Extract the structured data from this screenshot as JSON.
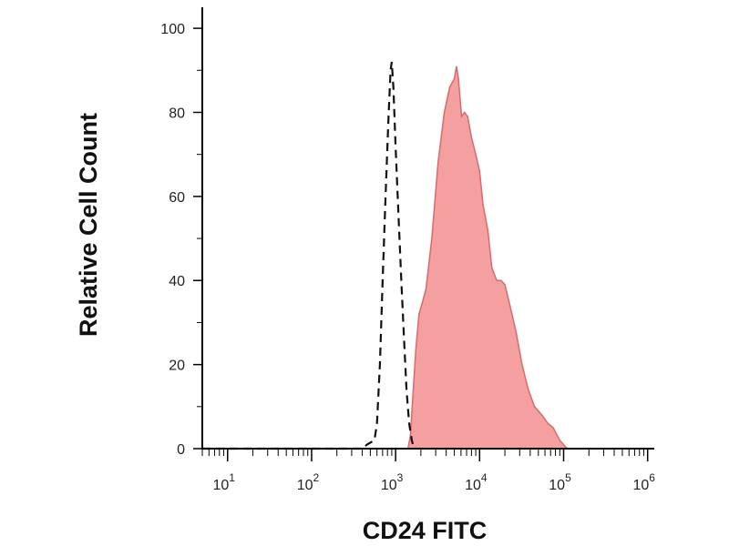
{
  "chart_data": {
    "type": "area",
    "title": "",
    "xlabel": "CD24 FITC",
    "ylabel": "Relative Cell Count",
    "x_scale": "log",
    "xlim": [
      5,
      1200000
    ],
    "ylim": [
      0,
      105
    ],
    "grid": false,
    "x_ticks": [
      {
        "base": "10",
        "exp": "1",
        "value": 10
      },
      {
        "base": "10",
        "exp": "2",
        "value": 100
      },
      {
        "base": "10",
        "exp": "3",
        "value": 1000
      },
      {
        "base": "10",
        "exp": "4",
        "value": 10000
      },
      {
        "base": "10",
        "exp": "5",
        "value": 100000
      },
      {
        "base": "10",
        "exp": "6",
        "value": 1000000
      }
    ],
    "y_ticks": [
      {
        "label": "0",
        "value": 0
      },
      {
        "label": "20",
        "value": 20
      },
      {
        "label": "40",
        "value": 40
      },
      {
        "label": "60",
        "value": 60
      },
      {
        "label": "80",
        "value": 80
      },
      {
        "label": "100",
        "value": 100
      }
    ],
    "series": [
      {
        "style": "dashed-outline",
        "color": "#111111",
        "points": [
          [
            5,
            0
          ],
          [
            400,
            0
          ],
          [
            460,
            1
          ],
          [
            560,
            2
          ],
          [
            600,
            6
          ],
          [
            650,
            20
          ],
          [
            700,
            40
          ],
          [
            760,
            60
          ],
          [
            820,
            78
          ],
          [
            870,
            90
          ],
          [
            900,
            92
          ],
          [
            940,
            86
          ],
          [
            1000,
            72
          ],
          [
            1080,
            56
          ],
          [
            1170,
            40
          ],
          [
            1260,
            26
          ],
          [
            1350,
            14
          ],
          [
            1450,
            6
          ],
          [
            1560,
            2
          ],
          [
            1650,
            0
          ]
        ]
      },
      {
        "style": "filled",
        "color": "#f5a0a0",
        "stroke": "#d96a6a",
        "points": [
          [
            5,
            0
          ],
          [
            1400,
            0
          ],
          [
            1500,
            3
          ],
          [
            1600,
            12
          ],
          [
            1750,
            24
          ],
          [
            1900,
            32
          ],
          [
            2100,
            35
          ],
          [
            2300,
            38
          ],
          [
            2700,
            50
          ],
          [
            3200,
            68
          ],
          [
            3800,
            80
          ],
          [
            4400,
            86
          ],
          [
            5000,
            88
          ],
          [
            5300,
            91
          ],
          [
            5600,
            88
          ],
          [
            6100,
            79
          ],
          [
            6600,
            80
          ],
          [
            7200,
            79
          ],
          [
            8000,
            74
          ],
          [
            9000,
            70
          ],
          [
            10000,
            66
          ],
          [
            11000,
            58
          ],
          [
            12500,
            52
          ],
          [
            14000,
            43
          ],
          [
            16000,
            40
          ],
          [
            18000,
            40
          ],
          [
            20000,
            39
          ],
          [
            23000,
            34
          ],
          [
            27000,
            28
          ],
          [
            32000,
            20
          ],
          [
            38000,
            14
          ],
          [
            45000,
            10
          ],
          [
            55000,
            8
          ],
          [
            65000,
            6
          ],
          [
            75000,
            5
          ],
          [
            90000,
            2
          ],
          [
            110000,
            0
          ]
        ]
      }
    ]
  }
}
